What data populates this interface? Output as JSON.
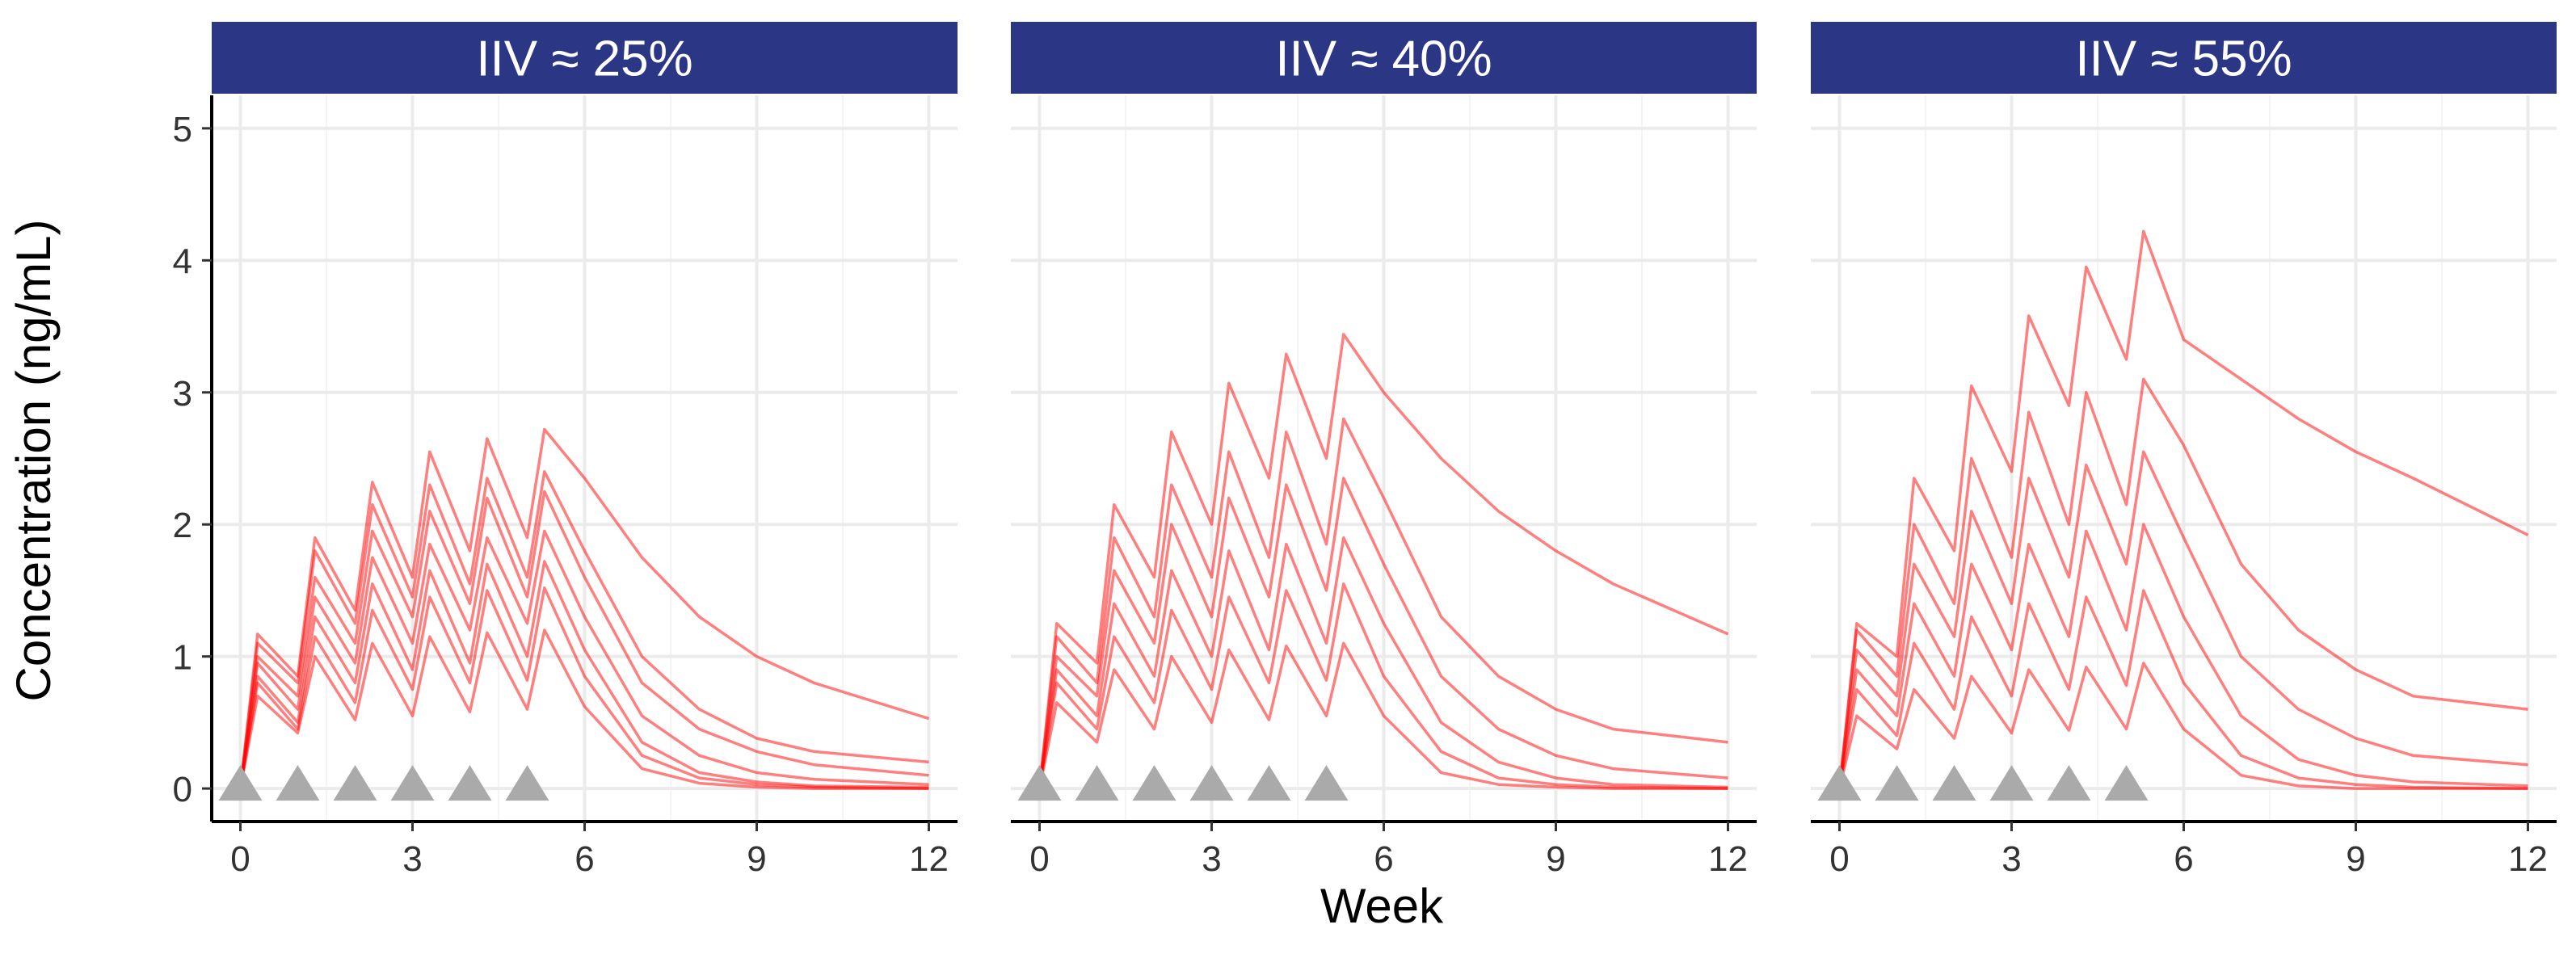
{
  "chart_data": {
    "type": "line",
    "xlabel": "Week",
    "ylabel": "Concentration (ng/mL)",
    "xlim": [
      -0.5,
      12.5
    ],
    "ylim": [
      -0.25,
      5.25
    ],
    "xticks": [
      0,
      3,
      6,
      9,
      12
    ],
    "yticks": [
      0,
      1,
      2,
      3,
      4,
      5
    ],
    "grid": true,
    "line_color": "#ff0000",
    "strip_color": "#2b3784",
    "dose_marker_color": "#aaaaaa",
    "dose_times_weeks": [
      0,
      1,
      2,
      3,
      4,
      5
    ],
    "panels": [
      {
        "title": "IIV ≈ 25%",
        "series": [
          {
            "x": [
              0,
              0.3,
              1,
              1.3,
              2,
              2.3,
              3,
              3.3,
              4,
              4.3,
              5,
              5.3,
              6,
              7,
              8,
              9,
              10,
              12
            ],
            "y": [
              0,
              1.17,
              0.85,
              1.9,
              1.35,
              2.32,
              1.6,
              2.55,
              1.8,
              2.65,
              1.9,
              2.72,
              2.35,
              1.75,
              1.3,
              1.0,
              0.8,
              0.53
            ]
          },
          {
            "x": [
              0,
              0.3,
              1,
              1.3,
              2,
              2.3,
              3,
              3.3,
              4,
              4.3,
              5,
              5.3,
              6,
              7,
              8,
              9,
              10,
              12
            ],
            "y": [
              0,
              1.1,
              0.8,
              1.8,
              1.25,
              2.15,
              1.45,
              2.3,
              1.55,
              2.35,
              1.6,
              2.4,
              1.8,
              1.0,
              0.6,
              0.38,
              0.28,
              0.2
            ]
          },
          {
            "x": [
              0,
              0.3,
              1,
              1.3,
              2,
              2.3,
              3,
              3.3,
              4,
              4.3,
              5,
              5.3,
              6,
              7,
              8,
              9,
              10,
              12
            ],
            "y": [
              0,
              1.0,
              0.7,
              1.6,
              1.1,
              1.95,
              1.3,
              2.1,
              1.4,
              2.2,
              1.45,
              2.25,
              1.6,
              0.8,
              0.45,
              0.28,
              0.18,
              0.1
            ]
          },
          {
            "x": [
              0,
              0.3,
              1,
              1.3,
              2,
              2.3,
              3,
              3.3,
              4,
              4.3,
              5,
              5.3,
              6,
              7,
              8,
              9,
              10,
              12
            ],
            "y": [
              0,
              0.95,
              0.6,
              1.45,
              0.95,
              1.75,
              1.1,
              1.85,
              1.2,
              1.9,
              1.25,
              1.95,
              1.3,
              0.55,
              0.25,
              0.12,
              0.07,
              0.03
            ]
          },
          {
            "x": [
              0,
              0.3,
              1,
              1.3,
              2,
              2.3,
              3,
              3.3,
              4,
              4.3,
              5,
              5.3,
              6,
              7,
              8,
              9,
              10,
              12
            ],
            "y": [
              0,
              0.85,
              0.5,
              1.3,
              0.8,
              1.55,
              0.9,
              1.65,
              0.95,
              1.7,
              1.0,
              1.72,
              1.05,
              0.35,
              0.12,
              0.05,
              0.02,
              0.01
            ]
          },
          {
            "x": [
              0,
              0.3,
              1,
              1.3,
              2,
              2.3,
              3,
              3.3,
              4,
              4.3,
              5,
              5.3,
              6,
              7,
              8,
              9,
              10,
              12
            ],
            "y": [
              0,
              0.8,
              0.45,
              1.15,
              0.65,
              1.35,
              0.75,
              1.45,
              0.8,
              1.5,
              0.82,
              1.52,
              0.85,
              0.25,
              0.08,
              0.03,
              0.01,
              0.0
            ]
          },
          {
            "x": [
              0,
              0.3,
              1,
              1.3,
              2,
              2.3,
              3,
              3.3,
              4,
              4.3,
              5,
              5.3,
              6,
              7,
              8,
              9,
              10,
              12
            ],
            "y": [
              0,
              0.7,
              0.42,
              1.0,
              0.52,
              1.1,
              0.55,
              1.15,
              0.58,
              1.18,
              0.6,
              1.2,
              0.62,
              0.15,
              0.04,
              0.01,
              0.0,
              0.0
            ]
          }
        ]
      },
      {
        "title": "IIV ≈ 40%",
        "series": [
          {
            "x": [
              0,
              0.3,
              1,
              1.3,
              2,
              2.3,
              3,
              3.3,
              4,
              4.3,
              5,
              5.3,
              6,
              7,
              8,
              9,
              10,
              12
            ],
            "y": [
              0,
              1.25,
              0.95,
              2.15,
              1.6,
              2.7,
              2.0,
              3.07,
              2.35,
              3.29,
              2.5,
              3.44,
              3.0,
              2.5,
              2.1,
              1.8,
              1.55,
              1.17
            ]
          },
          {
            "x": [
              0,
              0.3,
              1,
              1.3,
              2,
              2.3,
              3,
              3.3,
              4,
              4.3,
              5,
              5.3,
              6,
              7,
              8,
              9,
              10,
              12
            ],
            "y": [
              0,
              1.15,
              0.8,
              1.9,
              1.3,
              2.3,
              1.6,
              2.55,
              1.75,
              2.7,
              1.85,
              2.8,
              2.2,
              1.3,
              0.85,
              0.6,
              0.45,
              0.35
            ]
          },
          {
            "x": [
              0,
              0.3,
              1,
              1.3,
              2,
              2.3,
              3,
              3.3,
              4,
              4.3,
              5,
              5.3,
              6,
              7,
              8,
              9,
              10,
              12
            ],
            "y": [
              0,
              1.0,
              0.7,
              1.65,
              1.1,
              2.0,
              1.3,
              2.2,
              1.45,
              2.3,
              1.5,
              2.35,
              1.7,
              0.85,
              0.45,
              0.25,
              0.15,
              0.08
            ]
          },
          {
            "x": [
              0,
              0.3,
              1,
              1.3,
              2,
              2.3,
              3,
              3.3,
              4,
              4.3,
              5,
              5.3,
              6,
              7,
              8,
              9,
              10,
              12
            ],
            "y": [
              0,
              0.9,
              0.55,
              1.4,
              0.85,
              1.65,
              1.0,
              1.8,
              1.05,
              1.85,
              1.1,
              1.9,
              1.25,
              0.5,
              0.2,
              0.08,
              0.03,
              0.01
            ]
          },
          {
            "x": [
              0,
              0.3,
              1,
              1.3,
              2,
              2.3,
              3,
              3.3,
              4,
              4.3,
              5,
              5.3,
              6,
              7,
              8,
              9,
              10,
              12
            ],
            "y": [
              0,
              0.8,
              0.45,
              1.15,
              0.65,
              1.35,
              0.75,
              1.45,
              0.8,
              1.5,
              0.82,
              1.55,
              0.85,
              0.28,
              0.08,
              0.03,
              0.01,
              0.0
            ]
          },
          {
            "x": [
              0,
              0.3,
              1,
              1.3,
              2,
              2.3,
              3,
              3.3,
              4,
              4.3,
              5,
              5.3,
              6,
              7,
              8,
              9,
              10,
              12
            ],
            "y": [
              0,
              0.65,
              0.35,
              0.9,
              0.45,
              1.0,
              0.5,
              1.05,
              0.52,
              1.08,
              0.55,
              1.1,
              0.55,
              0.12,
              0.03,
              0.01,
              0.0,
              0.0
            ]
          }
        ]
      },
      {
        "title": "IIV ≈ 55%",
        "series": [
          {
            "x": [
              0,
              0.3,
              1,
              1.3,
              2,
              2.3,
              3,
              3.3,
              4,
              4.3,
              5,
              5.3,
              6,
              7,
              8,
              9,
              10,
              12
            ],
            "y": [
              0,
              1.25,
              1.0,
              2.35,
              1.8,
              3.05,
              2.4,
              3.58,
              2.9,
              3.95,
              3.25,
              4.22,
              3.4,
              3.1,
              2.8,
              2.55,
              2.35,
              1.92
            ]
          },
          {
            "x": [
              0,
              0.3,
              1,
              1.3,
              2,
              2.3,
              3,
              3.3,
              4,
              4.3,
              5,
              5.3,
              6,
              7,
              8,
              9,
              10,
              12
            ],
            "y": [
              0,
              1.2,
              0.85,
              2.0,
              1.4,
              2.5,
              1.75,
              2.85,
              2.0,
              3.0,
              2.15,
              3.1,
              2.6,
              1.7,
              1.2,
              0.9,
              0.7,
              0.6
            ]
          },
          {
            "x": [
              0,
              0.3,
              1,
              1.3,
              2,
              2.3,
              3,
              3.3,
              4,
              4.3,
              5,
              5.3,
              6,
              7,
              8,
              9,
              10,
              12
            ],
            "y": [
              0,
              1.05,
              0.7,
              1.7,
              1.15,
              2.1,
              1.4,
              2.35,
              1.6,
              2.45,
              1.7,
              2.55,
              1.9,
              1.0,
              0.6,
              0.38,
              0.25,
              0.18
            ]
          },
          {
            "x": [
              0,
              0.3,
              1,
              1.3,
              2,
              2.3,
              3,
              3.3,
              4,
              4.3,
              5,
              5.3,
              6,
              7,
              8,
              9,
              10,
              12
            ],
            "y": [
              0,
              0.9,
              0.55,
              1.4,
              0.85,
              1.7,
              1.05,
              1.85,
              1.15,
              1.95,
              1.2,
              2.0,
              1.3,
              0.55,
              0.22,
              0.1,
              0.05,
              0.02
            ]
          },
          {
            "x": [
              0,
              0.3,
              1,
              1.3,
              2,
              2.3,
              3,
              3.3,
              4,
              4.3,
              5,
              5.3,
              6,
              7,
              8,
              9,
              10,
              12
            ],
            "y": [
              0,
              0.75,
              0.4,
              1.1,
              0.6,
              1.3,
              0.7,
              1.4,
              0.75,
              1.45,
              0.78,
              1.5,
              0.8,
              0.25,
              0.08,
              0.03,
              0.01,
              0.0
            ]
          },
          {
            "x": [
              0,
              0.3,
              1,
              1.3,
              2,
              2.3,
              3,
              3.3,
              4,
              4.3,
              5,
              5.3,
              6,
              7,
              8,
              9,
              10,
              12
            ],
            "y": [
              0,
              0.55,
              0.3,
              0.75,
              0.38,
              0.85,
              0.42,
              0.9,
              0.44,
              0.92,
              0.45,
              0.95,
              0.45,
              0.1,
              0.02,
              0.0,
              0.0,
              0.0
            ]
          }
        ]
      }
    ]
  }
}
